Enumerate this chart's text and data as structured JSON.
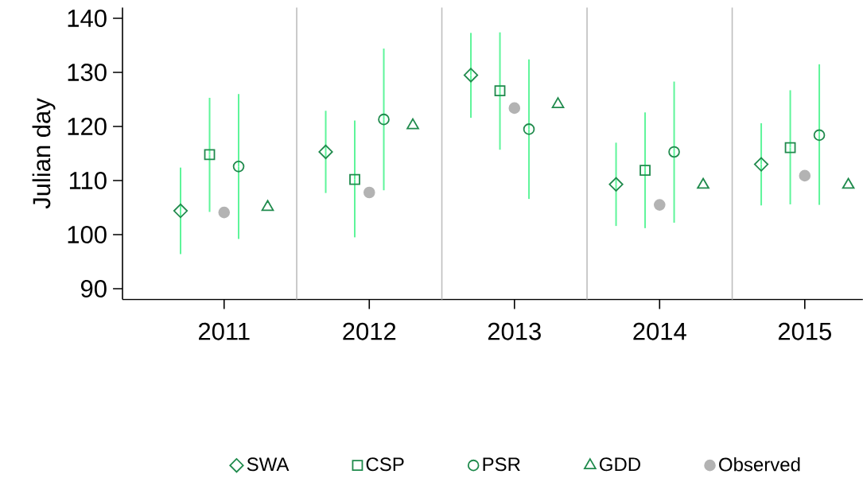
{
  "chart_data": {
    "type": "scatter",
    "ylabel": "Julian day",
    "xlim": [
      2010.3,
      2015.4
    ],
    "ylim": [
      88,
      142
    ],
    "xticks": [
      2011,
      2012,
      2013,
      2014,
      2015
    ],
    "yticks": [
      90,
      100,
      110,
      120,
      130,
      140
    ],
    "legend": "bottom",
    "grid": false,
    "ref_lines": [
      {
        "axis": "x",
        "value": 2011.5,
        "color": "#bebebe"
      },
      {
        "axis": "x",
        "value": 2012.5,
        "color": "#bebebe"
      },
      {
        "axis": "x",
        "value": 2013.5,
        "color": "#bebebe"
      },
      {
        "axis": "x",
        "value": 2014.5,
        "color": "#bebebe"
      }
    ],
    "series": [
      {
        "name": "SWA",
        "color": "#1f8a4c",
        "marker": "diamond",
        "x": [
          2010.7,
          2011.7,
          2012.7,
          2013.7,
          2014.7
        ],
        "values": [
          104.4,
          115.3,
          129.5,
          109.3,
          113.0
        ],
        "errors": [
          [
            96.4,
            112.4
          ],
          [
            107.7,
            122.9
          ],
          [
            121.6,
            137.3
          ],
          [
            101.6,
            117.0
          ],
          [
            105.4,
            120.6
          ]
        ]
      },
      {
        "name": "CSP",
        "color": "#1f8a4c",
        "marker": "square",
        "x": [
          2010.9,
          2011.9,
          2012.9,
          2013.9,
          2014.9
        ],
        "values": [
          114.8,
          110.2,
          126.6,
          111.9,
          116.1
        ],
        "errors": [
          [
            104.2,
            125.3
          ],
          [
            99.5,
            121.1
          ],
          [
            115.7,
            137.4
          ],
          [
            101.2,
            122.6
          ],
          [
            105.6,
            126.7
          ]
        ]
      },
      {
        "name": "PSR",
        "color": "#1f8a4c",
        "marker": "circle",
        "x": [
          2011.1,
          2012.1,
          2013.1,
          2014.1,
          2015.1
        ],
        "values": [
          112.6,
          121.3,
          119.5,
          115.3,
          118.4
        ],
        "errors": [
          [
            99.2,
            126.0
          ],
          [
            108.2,
            134.4
          ],
          [
            106.6,
            132.4
          ],
          [
            102.2,
            128.3
          ],
          [
            105.5,
            131.5
          ]
        ]
      },
      {
        "name": "GDD",
        "color": "#1f8a4c",
        "marker": "triangle",
        "x": [
          2011.3,
          2012.3,
          2013.3,
          2014.3,
          2015.3
        ],
        "values": [
          105.1,
          120.2,
          124.1,
          109.2,
          109.2
        ]
      },
      {
        "name": "Observed",
        "color": "#b3b3b3",
        "marker": "circle",
        "x": [
          2011,
          2012,
          2013,
          2014,
          2015
        ],
        "values": [
          104.1,
          107.8,
          123.4,
          105.5,
          110.9
        ]
      }
    ]
  }
}
